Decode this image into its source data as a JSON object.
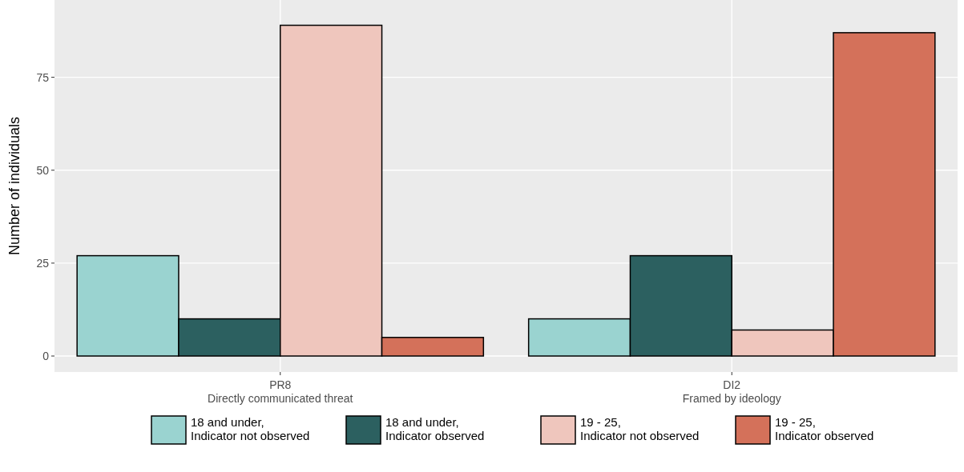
{
  "chart_data": {
    "type": "bar",
    "ylabel": "Number of individuals",
    "categories": [
      "PR8\nDirectly communicated threat",
      "DI2\nFramed by ideology"
    ],
    "series": [
      {
        "name": "18 and under,\nIndicator not observed",
        "color": "#9ad3d0",
        "values": [
          27,
          10
        ]
      },
      {
        "name": "18 and under,\nIndicator observed",
        "color": "#2c6060",
        "values": [
          10,
          27
        ]
      },
      {
        "name": "19 - 25,\nIndicator not observed",
        "color": "#efc6bd",
        "values": [
          89,
          7
        ]
      },
      {
        "name": "19 - 25,\nIndicator observed",
        "color": "#d4715a",
        "values": [
          5,
          87
        ]
      }
    ],
    "ylim": [
      -4.3,
      95.8
    ],
    "yticks": [
      0,
      25,
      50,
      75
    ],
    "grid": true,
    "legend": "bottom"
  }
}
